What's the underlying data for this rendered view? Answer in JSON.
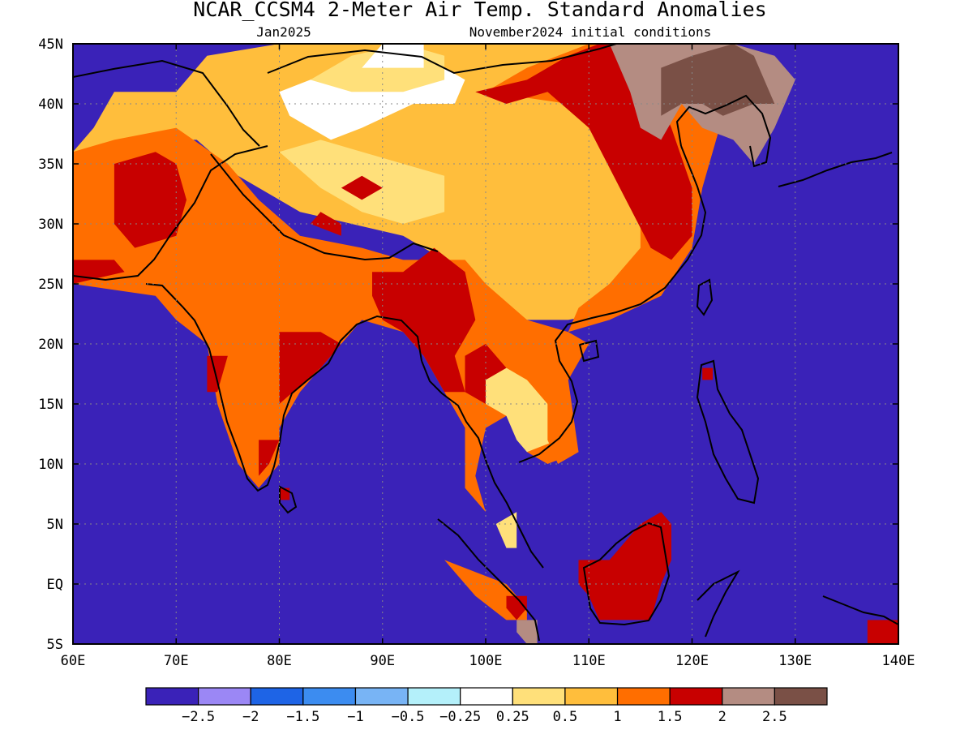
{
  "title": "NCAR_CCSM4 2-Meter Air Temp. Standard Anomalies",
  "subtitle_left": "Jan2025",
  "subtitle_right": "November2024 initial conditions",
  "lon_labels": [
    "60E",
    "70E",
    "80E",
    "90E",
    "100E",
    "110E",
    "120E",
    "130E",
    "140E"
  ],
  "lon_values": [
    60,
    70,
    80,
    90,
    100,
    110,
    120,
    130,
    140
  ],
  "lat_labels": [
    "45N",
    "40N",
    "35N",
    "30N",
    "25N",
    "20N",
    "15N",
    "10N",
    "5N",
    "EQ",
    "5S"
  ],
  "lat_values": [
    45,
    40,
    35,
    30,
    25,
    20,
    15,
    10,
    5,
    0,
    -5
  ],
  "legend": {
    "labels": [
      "-2.5",
      "-2",
      "-1.5",
      "-1",
      "-0.5",
      "-0.25",
      "0.25",
      "0.5",
      "1",
      "1.5",
      "2",
      "2.5"
    ],
    "colors": [
      "#3a22b8",
      "#9b87f5",
      "#1e64e6",
      "#3c8cf0",
      "#78b4f5",
      "#b4f0fa",
      "#ffffff",
      "#ffe07a",
      "#ffbe3c",
      "#ff6e00",
      "#c80000",
      "#b48c82",
      "#7a5046"
    ]
  },
  "map_data": {
    "lon_range": [
      60,
      140
    ],
    "lat_range": [
      -5,
      45
    ],
    "levels": [
      -2.5,
      -2,
      -1.5,
      -1,
      -0.5,
      -0.25,
      0.25,
      0.5,
      1,
      1.5,
      2,
      2.5
    ],
    "regions": [
      {
        "name": "white_base",
        "level": 0,
        "poly": [
          [
            60,
            45
          ],
          [
            140,
            45
          ],
          [
            140,
            -5
          ],
          [
            60,
            -5
          ]
        ]
      },
      {
        "name": "ne_asia_white",
        "level": 0,
        "poly": [
          [
            60,
            45
          ],
          [
            140,
            45
          ],
          [
            140,
            -5
          ],
          [
            60,
            -5
          ]
        ]
      },
      {
        "name": "china_light_orange",
        "level": 8,
        "poly": [
          [
            60,
            36
          ],
          [
            62,
            38
          ],
          [
            64,
            41
          ],
          [
            70,
            41
          ],
          [
            73,
            44
          ],
          [
            80,
            45
          ],
          [
            112,
            45
          ],
          [
            112,
            42
          ],
          [
            116,
            40
          ],
          [
            118,
            38
          ],
          [
            118,
            34
          ],
          [
            120,
            31
          ],
          [
            118,
            27
          ],
          [
            114,
            23
          ],
          [
            108,
            22
          ],
          [
            104,
            22
          ],
          [
            98,
            26
          ],
          [
            92,
            29
          ],
          [
            82,
            31
          ],
          [
            76,
            34
          ],
          [
            72,
            37
          ],
          [
            66,
            37
          ],
          [
            62,
            35
          ]
        ]
      },
      {
        "name": "central_asia_white",
        "level": 6,
        "poly": [
          [
            81,
            39
          ],
          [
            85,
            37
          ],
          [
            88,
            38
          ],
          [
            93,
            40
          ],
          [
            97,
            40
          ],
          [
            98,
            42
          ],
          [
            96,
            43
          ],
          [
            92,
            44
          ],
          [
            88,
            44
          ],
          [
            83,
            42
          ],
          [
            80,
            41
          ]
        ]
      },
      {
        "name": "tibet_yellow",
        "level": 7,
        "poly": [
          [
            80,
            36
          ],
          [
            84,
            33
          ],
          [
            88,
            31
          ],
          [
            92,
            30
          ],
          [
            96,
            31
          ],
          [
            96,
            34
          ],
          [
            92,
            35
          ],
          [
            88,
            36
          ],
          [
            84,
            37
          ]
        ]
      },
      {
        "name": "mongolia_yellow",
        "level": 7,
        "poly": [
          [
            83,
            42
          ],
          [
            87,
            44
          ],
          [
            92,
            45
          ],
          [
            96,
            44
          ],
          [
            96,
            42
          ],
          [
            92,
            41
          ],
          [
            87,
            41
          ]
        ]
      },
      {
        "name": "mongolia_white",
        "level": 6,
        "poly": [
          [
            88,
            43
          ],
          [
            90,
            45
          ],
          [
            94,
            45
          ],
          [
            94,
            43
          ]
        ]
      },
      {
        "name": "south_asia_orange",
        "level": 9,
        "poly": [
          [
            60,
            36
          ],
          [
            64,
            37
          ],
          [
            70,
            38
          ],
          [
            75,
            35
          ],
          [
            78,
            32
          ],
          [
            82,
            29
          ],
          [
            88,
            28
          ],
          [
            92,
            27
          ],
          [
            98,
            27
          ],
          [
            100,
            25
          ],
          [
            104,
            22
          ],
          [
            108,
            21
          ],
          [
            110,
            20
          ],
          [
            108,
            17
          ],
          [
            109,
            11
          ],
          [
            106,
            10
          ],
          [
            104,
            11
          ],
          [
            102,
            14
          ],
          [
            100,
            13
          ],
          [
            99,
            9
          ],
          [
            100,
            6
          ],
          [
            98,
            8
          ],
          [
            98,
            13
          ],
          [
            96,
            16
          ],
          [
            94,
            19
          ],
          [
            92,
            21
          ],
          [
            88,
            22
          ],
          [
            86,
            20
          ],
          [
            84,
            18
          ],
          [
            82,
            16
          ],
          [
            80,
            13
          ],
          [
            80,
            10
          ],
          [
            78,
            8
          ],
          [
            76,
            10
          ],
          [
            74,
            15
          ],
          [
            73,
            20
          ],
          [
            70,
            22
          ],
          [
            68,
            24
          ],
          [
            60,
            25
          ]
        ]
      },
      {
        "name": "e_china_orange",
        "level": 9,
        "poly": [
          [
            100,
            41
          ],
          [
            104,
            43
          ],
          [
            110,
            45
          ],
          [
            118,
            45
          ],
          [
            120,
            42
          ],
          [
            123,
            39
          ],
          [
            121,
            33
          ],
          [
            120,
            28
          ],
          [
            117,
            24
          ],
          [
            112,
            22
          ],
          [
            108,
            21
          ],
          [
            109,
            23
          ],
          [
            112,
            25
          ],
          [
            115,
            28
          ],
          [
            115,
            33
          ],
          [
            112,
            37
          ],
          [
            108,
            40
          ]
        ]
      },
      {
        "name": "e_china_red",
        "level": 10,
        "poly": [
          [
            99,
            41
          ],
          [
            104,
            42
          ],
          [
            108,
            44
          ],
          [
            111,
            45
          ],
          [
            114,
            45
          ],
          [
            116,
            42
          ],
          [
            118,
            38
          ],
          [
            120,
            33
          ],
          [
            120,
            29
          ],
          [
            118,
            27
          ],
          [
            116,
            28
          ],
          [
            113,
            33
          ],
          [
            110,
            38
          ],
          [
            106,
            41
          ],
          [
            102,
            40
          ]
        ]
      },
      {
        "name": "korea_china_brown",
        "level": 11,
        "poly": [
          [
            112,
            45
          ],
          [
            124,
            45
          ],
          [
            128,
            44
          ],
          [
            130,
            42
          ],
          [
            128,
            38
          ],
          [
            126,
            35
          ],
          [
            124,
            37
          ],
          [
            121,
            38
          ],
          [
            119,
            40
          ],
          [
            117,
            37
          ],
          [
            115,
            38
          ],
          [
            114,
            41
          ]
        ]
      },
      {
        "name": "manchuria_dark",
        "level": 12,
        "poly": [
          [
            117,
            43
          ],
          [
            120,
            44
          ],
          [
            124,
            45
          ],
          [
            126,
            44
          ],
          [
            128,
            40
          ],
          [
            126,
            40
          ],
          [
            123,
            39
          ],
          [
            121,
            40
          ],
          [
            119,
            40
          ],
          [
            117,
            39
          ]
        ]
      },
      {
        "name": "pakistan_red",
        "level": 10,
        "poly": [
          [
            64,
            35
          ],
          [
            68,
            36
          ],
          [
            70,
            35
          ],
          [
            71,
            32
          ],
          [
            70,
            29
          ],
          [
            66,
            28
          ],
          [
            64,
            30
          ]
        ]
      },
      {
        "name": "afghan_red2",
        "level": 10,
        "poly": [
          [
            60,
            27
          ],
          [
            64,
            27
          ],
          [
            65,
            26
          ],
          [
            60,
            25
          ]
        ]
      },
      {
        "name": "myanmar_red",
        "level": 10,
        "poly": [
          [
            89,
            26
          ],
          [
            92,
            26
          ],
          [
            95,
            28
          ],
          [
            98,
            26
          ],
          [
            99,
            22
          ],
          [
            97,
            19
          ],
          [
            98,
            16
          ],
          [
            96,
            16
          ],
          [
            94,
            19
          ],
          [
            92,
            21
          ],
          [
            90,
            22
          ],
          [
            89,
            24
          ]
        ]
      },
      {
        "name": "thai_red",
        "level": 10,
        "poly": [
          [
            98,
            19
          ],
          [
            100,
            20
          ],
          [
            102,
            18
          ],
          [
            102,
            15
          ],
          [
            100,
            15
          ],
          [
            98,
            16
          ]
        ]
      },
      {
        "name": "india_red_east",
        "level": 10,
        "poly": [
          [
            80,
            21
          ],
          [
            84,
            21
          ],
          [
            86,
            20
          ],
          [
            84,
            18
          ],
          [
            80,
            15
          ],
          [
            80,
            19
          ]
        ]
      },
      {
        "name": "india_red_west",
        "level": 10,
        "poly": [
          [
            73,
            19
          ],
          [
            75,
            19
          ],
          [
            74,
            16
          ],
          [
            73,
            16
          ]
        ]
      },
      {
        "name": "india_red_south",
        "level": 10,
        "poly": [
          [
            78,
            12
          ],
          [
            80,
            12
          ],
          [
            79,
            10
          ],
          [
            78,
            9
          ]
        ]
      },
      {
        "name": "tibet_red",
        "level": 10,
        "poly": [
          [
            86,
            33
          ],
          [
            88,
            32
          ],
          [
            90,
            33
          ],
          [
            88,
            34
          ]
        ]
      },
      {
        "name": "tibet_red2",
        "level": 10,
        "poly": [
          [
            83,
            30
          ],
          [
            86,
            29
          ],
          [
            86,
            30
          ],
          [
            84,
            31
          ]
        ]
      },
      {
        "name": "vietnam_yellow",
        "level": 7,
        "poly": [
          [
            100,
            17
          ],
          [
            102,
            18
          ],
          [
            104,
            17
          ],
          [
            106,
            15
          ],
          [
            107,
            12
          ],
          [
            104,
            11
          ],
          [
            103,
            12
          ],
          [
            102,
            14
          ],
          [
            100,
            15
          ]
        ]
      },
      {
        "name": "vietnam_orange",
        "level": 9,
        "poly": [
          [
            106,
            15
          ],
          [
            108,
            15
          ],
          [
            109,
            11
          ],
          [
            107,
            10
          ],
          [
            106,
            12
          ]
        ]
      },
      {
        "name": "borneo_red",
        "level": 10,
        "poly": [
          [
            109,
            2
          ],
          [
            112,
            2
          ],
          [
            115,
            5
          ],
          [
            117,
            6
          ],
          [
            118,
            5
          ],
          [
            118,
            2
          ],
          [
            117,
            0
          ],
          [
            116,
            -3
          ],
          [
            114,
            -3
          ],
          [
            111,
            -3
          ],
          [
            110,
            -1
          ],
          [
            109,
            0
          ]
        ]
      },
      {
        "name": "sumatra_orange",
        "level": 9,
        "poly": [
          [
            96,
            2
          ],
          [
            99,
            1
          ],
          [
            102,
            0
          ],
          [
            104,
            -2
          ],
          [
            104,
            -3
          ],
          [
            102,
            -3
          ],
          [
            99,
            -1
          ],
          [
            97,
            1
          ]
        ]
      },
      {
        "name": "sumatra_red",
        "level": 10,
        "poly": [
          [
            102,
            -1
          ],
          [
            104,
            -1
          ],
          [
            104,
            -2
          ],
          [
            103,
            -3
          ],
          [
            102,
            -2
          ]
        ]
      },
      {
        "name": "sumatra_brown",
        "level": 11,
        "poly": [
          [
            103,
            -3
          ],
          [
            105,
            -3
          ],
          [
            105,
            -5
          ],
          [
            104,
            -5
          ],
          [
            103,
            -4
          ]
        ]
      },
      {
        "name": "malaya_yellow",
        "level": 7,
        "poly": [
          [
            101,
            5
          ],
          [
            103,
            6
          ],
          [
            103,
            3
          ],
          [
            102,
            3
          ]
        ]
      },
      {
        "name": "png_red",
        "level": 10,
        "poly": [
          [
            137,
            -3
          ],
          [
            140,
            -3
          ],
          [
            140,
            -5
          ],
          [
            137,
            -5
          ]
        ]
      },
      {
        "name": "luzon_red",
        "level": 10,
        "poly": [
          [
            121,
            17
          ],
          [
            122,
            17
          ],
          [
            122,
            18
          ],
          [
            121,
            18
          ]
        ]
      },
      {
        "name": "sri_lanka_red",
        "level": 10,
        "poly": [
          [
            80,
            7
          ],
          [
            81,
            7
          ],
          [
            81,
            8
          ],
          [
            80,
            8
          ]
        ]
      }
    ]
  }
}
